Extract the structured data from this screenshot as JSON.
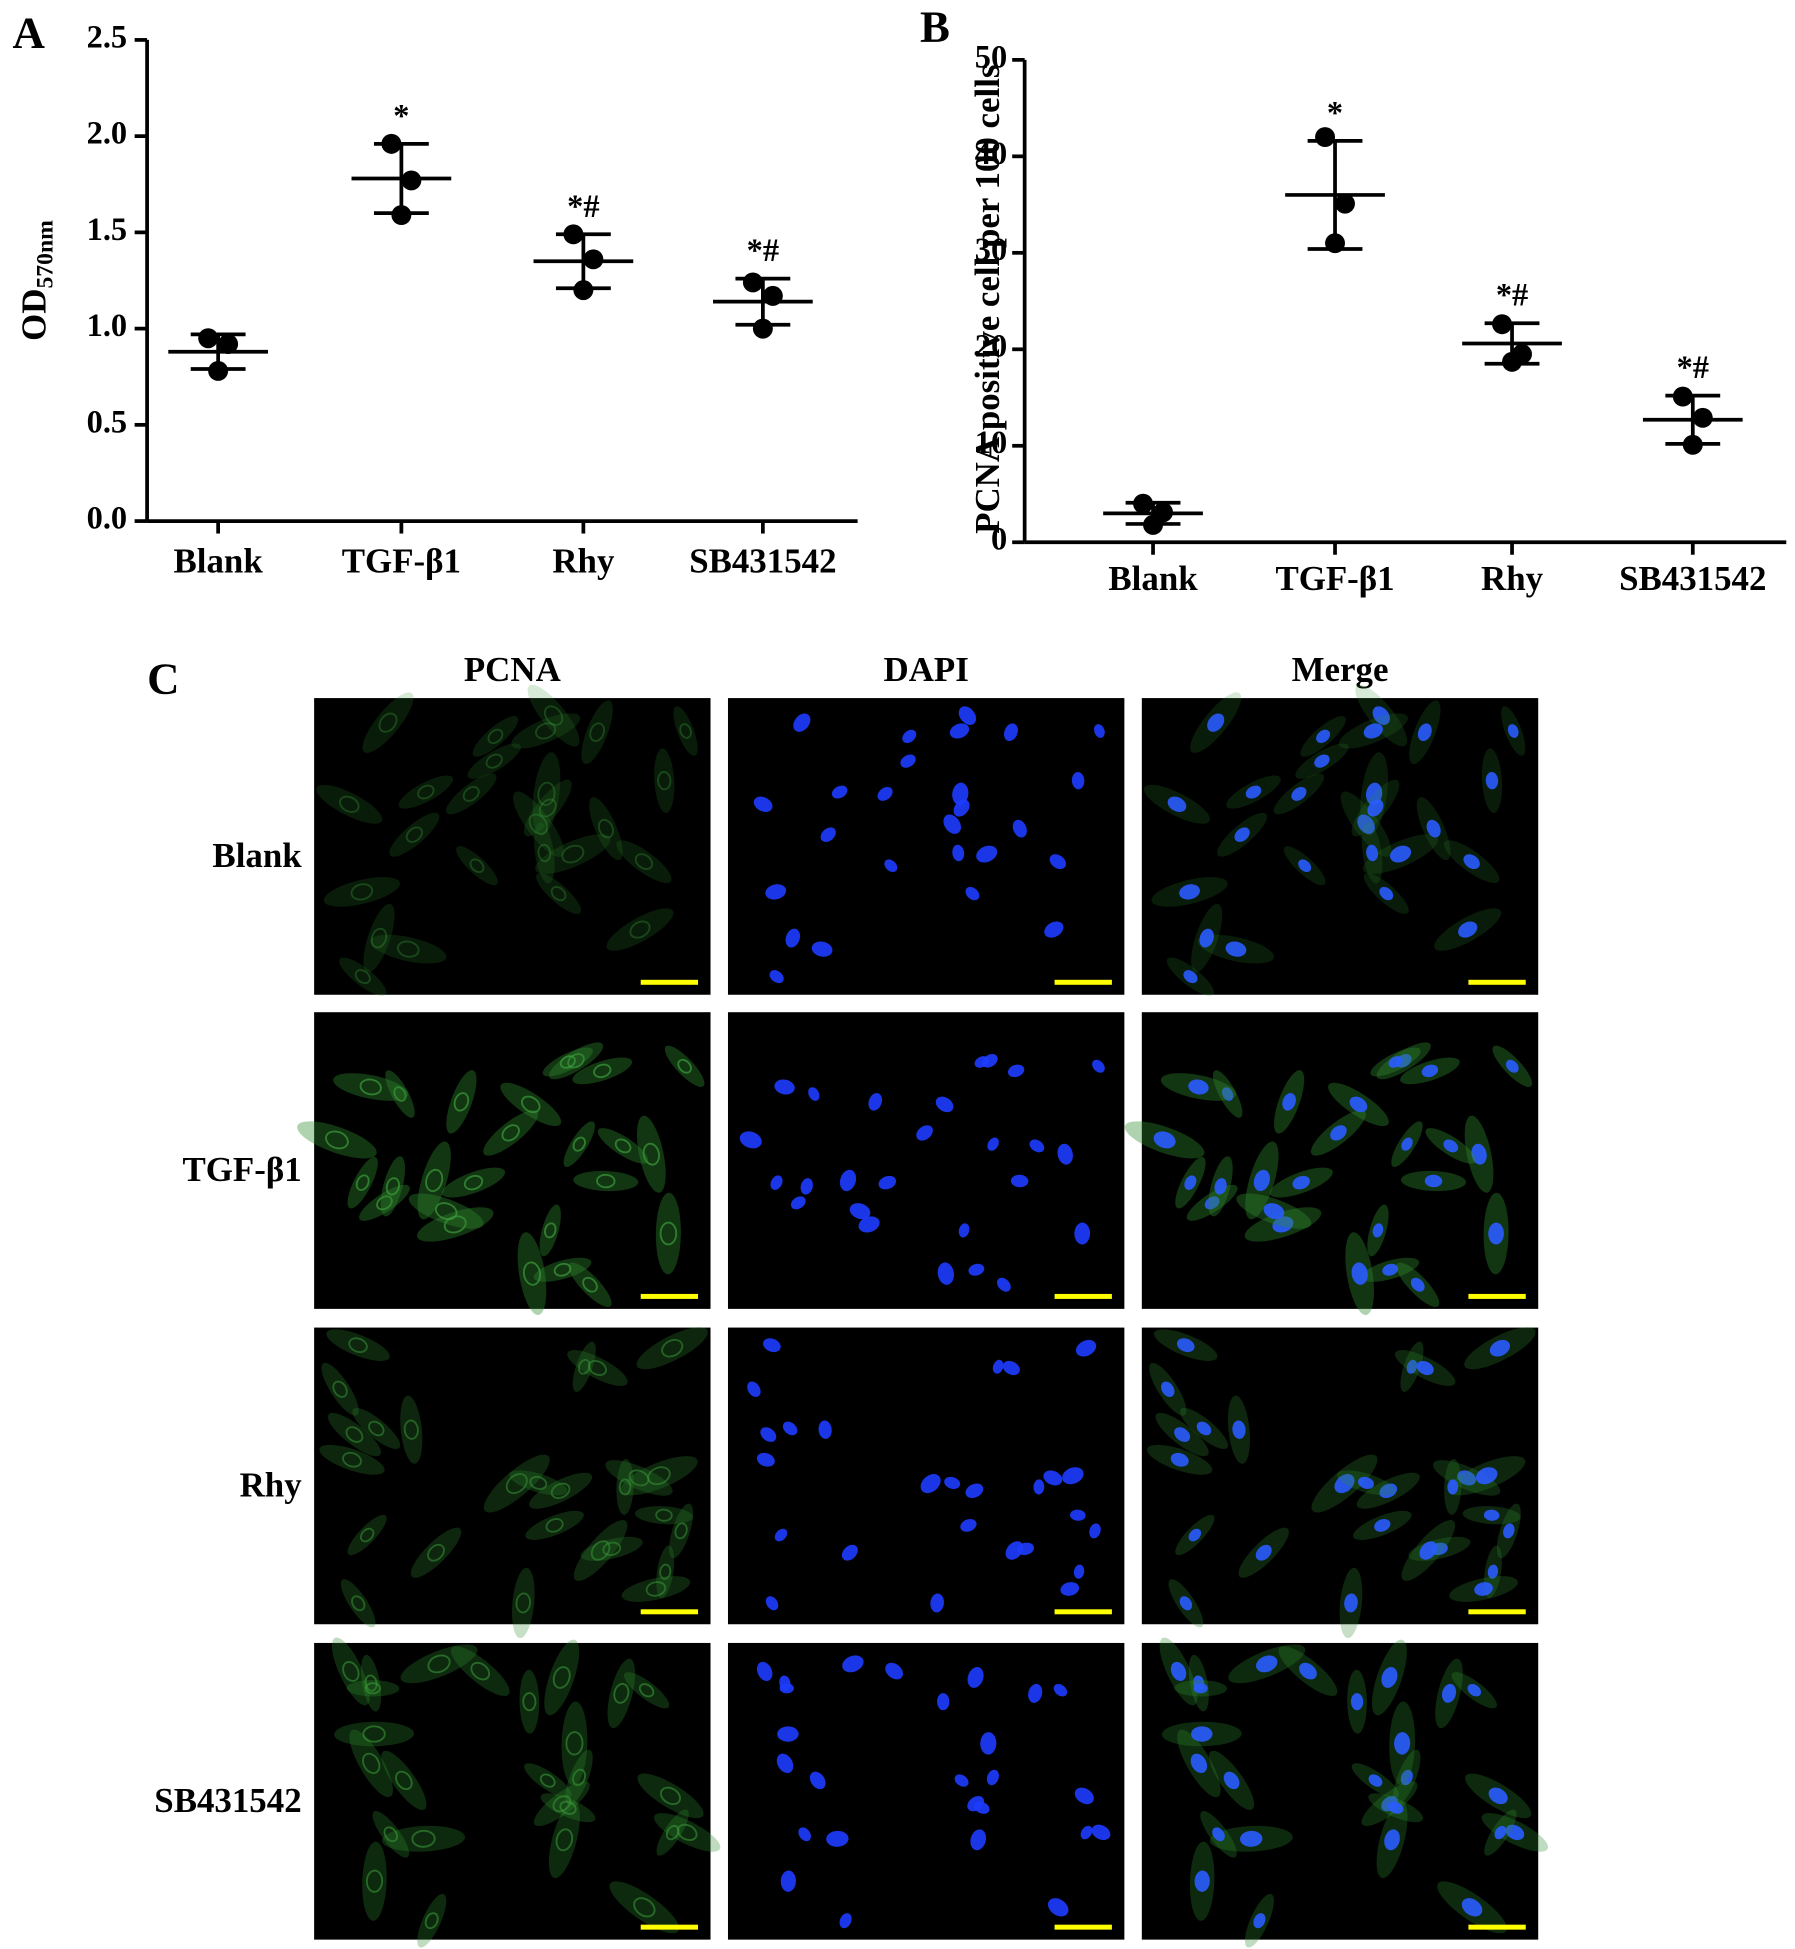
{
  "chart_data": [
    {
      "type": "scatter",
      "panel_label": "A",
      "ylabel": "OD",
      "ylabel_subscript": "570nm",
      "categories": [
        "Blank",
        "TGF-β1",
        "Rhy",
        "SB431542"
      ],
      "points": [
        [
          0.95,
          0.92,
          0.78
        ],
        [
          1.96,
          1.77,
          1.59
        ],
        [
          1.49,
          1.36,
          1.2
        ],
        [
          1.24,
          1.17,
          1.0
        ]
      ],
      "mean": [
        0.88,
        1.78,
        1.35,
        1.14
      ],
      "sd": [
        0.09,
        0.18,
        0.14,
        0.12
      ],
      "annotations": [
        null,
        "*",
        "*#",
        "*#"
      ],
      "ylim": [
        0,
        2.5
      ],
      "yticks": [
        {
          "value": 0,
          "label": "0.0"
        },
        0.5,
        {
          "value": 1,
          "label": "1.0"
        },
        1.5,
        {
          "value": 2,
          "label": "2.0"
        },
        2.5
      ],
      "color": "#000000"
    },
    {
      "type": "scatter",
      "panel_label": "B",
      "ylabel": "PCNA positive cell per 100 cells",
      "categories": [
        "Blank",
        "TGF-β1",
        "Rhy",
        "SB431542"
      ],
      "points": [
        [
          4.0,
          3.1,
          1.8
        ],
        [
          42,
          35.1,
          31
        ],
        [
          22.6,
          19.5,
          18.7
        ],
        [
          15.1,
          12.9,
          10.1
        ]
      ],
      "mean": [
        3.0,
        36.0,
        20.6,
        12.7
      ],
      "sd": [
        1.1,
        5.6,
        2.1,
        2.5
      ],
      "annotations": [
        null,
        "*",
        "*#",
        "*#"
      ],
      "ylim": [
        0,
        50
      ],
      "yticks": [
        0,
        10,
        20,
        30,
        40,
        50
      ],
      "color": "#000000"
    }
  ],
  "figure_c": {
    "panel_label": "C",
    "columns": [
      "PCNA",
      "DAPI",
      "Merge"
    ],
    "rows": [
      "Blank",
      "TGF-β1",
      "Rhy",
      "SB431542"
    ]
  }
}
